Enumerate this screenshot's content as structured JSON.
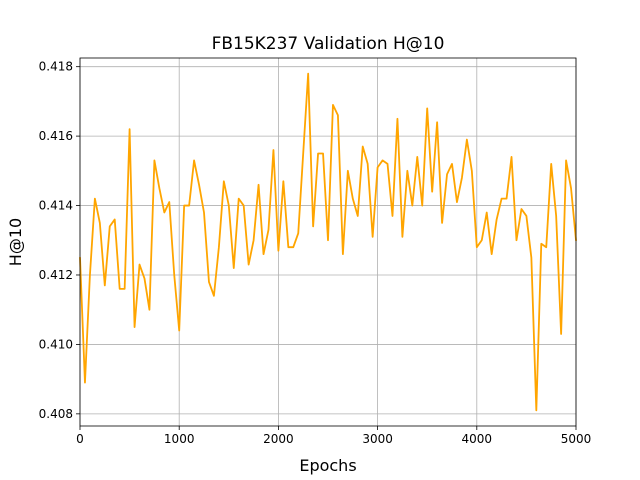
{
  "chart_data": {
    "type": "line",
    "title": "FB15K237 Validation H@10",
    "xlabel": "Epochs",
    "ylabel": "H@10",
    "xlim": [
      0,
      5000
    ],
    "ylim": [
      0.40765,
      0.41825
    ],
    "xticks": [
      0,
      1000,
      2000,
      3000,
      4000,
      5000
    ],
    "yticks": [
      0.408,
      0.41,
      0.412,
      0.414,
      0.416,
      0.418
    ],
    "grid": true,
    "series": [
      {
        "color": "#FFA500",
        "x": [
          0,
          50,
          100,
          150,
          200,
          250,
          300,
          350,
          400,
          450,
          500,
          550,
          600,
          650,
          700,
          750,
          800,
          850,
          900,
          950,
          1000,
          1050,
          1100,
          1150,
          1200,
          1250,
          1300,
          1350,
          1400,
          1450,
          1500,
          1550,
          1600,
          1650,
          1700,
          1750,
          1800,
          1850,
          1900,
          1950,
          2000,
          2050,
          2100,
          2150,
          2200,
          2250,
          2300,
          2350,
          2400,
          2450,
          2500,
          2550,
          2600,
          2650,
          2700,
          2750,
          2800,
          2850,
          2900,
          2950,
          3000,
          3050,
          3100,
          3150,
          3200,
          3250,
          3300,
          3350,
          3400,
          3450,
          3500,
          3550,
          3600,
          3650,
          3700,
          3750,
          3800,
          3850,
          3900,
          3950,
          4000,
          4050,
          4100,
          4150,
          4200,
          4250,
          4300,
          4350,
          4400,
          4450,
          4500,
          4550,
          4600,
          4650,
          4700,
          4750,
          4800,
          4850,
          4900,
          4950,
          5000
        ],
        "y": [
          0.4125,
          0.4089,
          0.412,
          0.4142,
          0.4135,
          0.4117,
          0.4134,
          0.4136,
          0.4116,
          0.4116,
          0.4162,
          0.4105,
          0.4123,
          0.4119,
          0.411,
          0.4153,
          0.4145,
          0.4138,
          0.4141,
          0.412,
          0.4104,
          0.414,
          0.414,
          0.4153,
          0.4146,
          0.4138,
          0.4118,
          0.4114,
          0.4128,
          0.4147,
          0.414,
          0.4122,
          0.4142,
          0.414,
          0.4123,
          0.413,
          0.4146,
          0.4126,
          0.4133,
          0.4156,
          0.4127,
          0.4147,
          0.4128,
          0.4128,
          0.4132,
          0.4155,
          0.4178,
          0.4134,
          0.4155,
          0.4155,
          0.413,
          0.4169,
          0.4166,
          0.4126,
          0.415,
          0.4142,
          0.4137,
          0.4157,
          0.4152,
          0.4131,
          0.4151,
          0.4153,
          0.4152,
          0.4137,
          0.4165,
          0.4131,
          0.415,
          0.414,
          0.4154,
          0.414,
          0.4168,
          0.4144,
          0.4164,
          0.4135,
          0.4149,
          0.4152,
          0.4141,
          0.4148,
          0.4159,
          0.415,
          0.4128,
          0.413,
          0.4138,
          0.4126,
          0.4136,
          0.4142,
          0.4142,
          0.4154,
          0.413,
          0.4139,
          0.4137,
          0.4125,
          0.4081,
          0.4129,
          0.4128,
          0.4152,
          0.4137,
          0.4103,
          0.4153,
          0.4145,
          0.413
        ]
      }
    ]
  }
}
